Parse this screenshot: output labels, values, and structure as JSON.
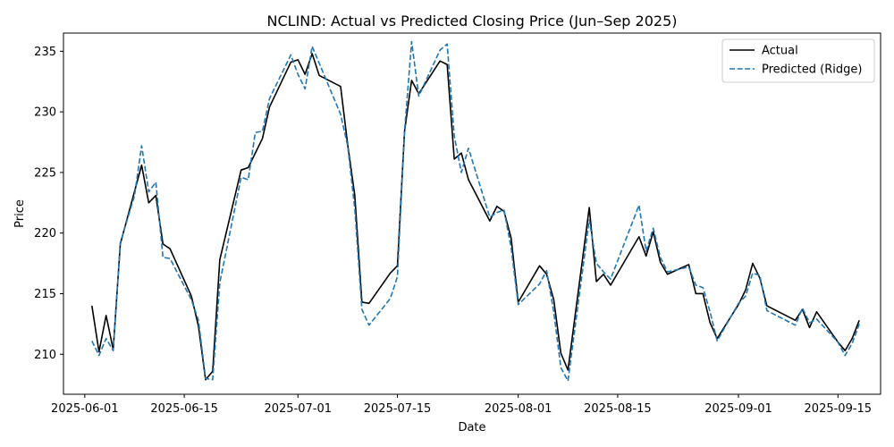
{
  "chart_data": {
    "type": "line",
    "title": "NCLIND: Actual vs Predicted Closing Price (Jun–Sep 2025)",
    "xlabel": "Date",
    "ylabel": "Price",
    "xlim": [
      "2025-05-29",
      "2025-09-21"
    ],
    "ylim": [
      206.7,
      236.5
    ],
    "x_ticks": [
      "2025-06-01",
      "2025-06-15",
      "2025-07-01",
      "2025-07-15",
      "2025-08-01",
      "2025-08-15",
      "2025-09-01",
      "2025-09-15"
    ],
    "y_ticks": [
      210,
      215,
      220,
      225,
      230,
      235
    ],
    "legend": {
      "position": "top-right"
    },
    "series": [
      {
        "name": "Actual",
        "color": "#000000",
        "dash": "solid",
        "points": [
          [
            "2025-06-02",
            214.0
          ],
          [
            "2025-06-03",
            210.2
          ],
          [
            "2025-06-04",
            213.2
          ],
          [
            "2025-06-05",
            210.4
          ],
          [
            "2025-06-06",
            219.1
          ],
          [
            "2025-06-09",
            225.6
          ],
          [
            "2025-06-10",
            222.5
          ],
          [
            "2025-06-11",
            223.1
          ],
          [
            "2025-06-12",
            219.1
          ],
          [
            "2025-06-13",
            218.7
          ],
          [
            "2025-06-16",
            214.8
          ],
          [
            "2025-06-17",
            212.3
          ],
          [
            "2025-06-18",
            207.9
          ],
          [
            "2025-06-19",
            208.6
          ],
          [
            "2025-06-20",
            217.8
          ],
          [
            "2025-06-23",
            225.2
          ],
          [
            "2025-06-24",
            225.4
          ],
          [
            "2025-06-26",
            227.8
          ],
          [
            "2025-06-27",
            230.4
          ],
          [
            "2025-06-30",
            234.1
          ],
          [
            "2025-07-01",
            234.3
          ],
          [
            "2025-07-02",
            233.1
          ],
          [
            "2025-07-03",
            234.8
          ],
          [
            "2025-07-04",
            233.0
          ],
          [
            "2025-07-07",
            232.1
          ],
          [
            "2025-07-08",
            227.3
          ],
          [
            "2025-07-09",
            223.1
          ],
          [
            "2025-07-10",
            214.3
          ],
          [
            "2025-07-11",
            214.2
          ],
          [
            "2025-07-14",
            216.7
          ],
          [
            "2025-07-15",
            217.3
          ],
          [
            "2025-07-16",
            228.4
          ],
          [
            "2025-07-17",
            232.6
          ],
          [
            "2025-07-18",
            231.5
          ],
          [
            "2025-07-21",
            234.2
          ],
          [
            "2025-07-22",
            233.9
          ],
          [
            "2025-07-23",
            226.1
          ],
          [
            "2025-07-24",
            226.6
          ],
          [
            "2025-07-25",
            224.4
          ],
          [
            "2025-07-28",
            221.0
          ],
          [
            "2025-07-29",
            222.2
          ],
          [
            "2025-07-30",
            221.8
          ],
          [
            "2025-07-31",
            219.6
          ],
          [
            "2025-08-01",
            214.3
          ],
          [
            "2025-08-04",
            217.3
          ],
          [
            "2025-08-05",
            216.6
          ],
          [
            "2025-08-06",
            214.5
          ],
          [
            "2025-08-07",
            210.1
          ],
          [
            "2025-08-08",
            208.7
          ],
          [
            "2025-08-11",
            222.1
          ],
          [
            "2025-08-12",
            216.0
          ],
          [
            "2025-08-13",
            216.6
          ],
          [
            "2025-08-14",
            215.7
          ],
          [
            "2025-08-18",
            219.7
          ],
          [
            "2025-08-19",
            218.1
          ],
          [
            "2025-08-20",
            220.1
          ],
          [
            "2025-08-21",
            217.6
          ],
          [
            "2025-08-22",
            216.6
          ],
          [
            "2025-08-25",
            217.4
          ],
          [
            "2025-08-26",
            215.0
          ],
          [
            "2025-08-27",
            215.0
          ],
          [
            "2025-08-28",
            212.6
          ],
          [
            "2025-08-29",
            211.3
          ],
          [
            "2025-09-01",
            214.1
          ],
          [
            "2025-09-02",
            215.3
          ],
          [
            "2025-09-03",
            217.5
          ],
          [
            "2025-09-04",
            216.3
          ],
          [
            "2025-09-05",
            214.0
          ],
          [
            "2025-09-09",
            212.8
          ],
          [
            "2025-09-10",
            213.7
          ],
          [
            "2025-09-11",
            212.2
          ],
          [
            "2025-09-12",
            213.5
          ],
          [
            "2025-09-15",
            211.0
          ],
          [
            "2025-09-16",
            210.3
          ],
          [
            "2025-09-17",
            211.3
          ],
          [
            "2025-09-18",
            212.8
          ]
        ]
      },
      {
        "name": "Predicted (Ridge)",
        "color": "#1f77b4",
        "dash": "dashed",
        "points": [
          [
            "2025-06-02",
            211.1
          ],
          [
            "2025-06-03",
            209.9
          ],
          [
            "2025-06-04",
            211.3
          ],
          [
            "2025-06-05",
            210.3
          ],
          [
            "2025-06-06",
            219.2
          ],
          [
            "2025-06-08",
            223.1
          ],
          [
            "2025-06-09",
            227.2
          ],
          [
            "2025-06-10",
            223.4
          ],
          [
            "2025-06-11",
            224.2
          ],
          [
            "2025-06-12",
            218.0
          ],
          [
            "2025-06-13",
            217.9
          ],
          [
            "2025-06-16",
            214.5
          ],
          [
            "2025-06-17",
            212.8
          ],
          [
            "2025-06-18",
            208.0
          ],
          [
            "2025-06-19",
            207.9
          ],
          [
            "2025-06-20",
            215.9
          ],
          [
            "2025-06-23",
            224.6
          ],
          [
            "2025-06-24",
            224.4
          ],
          [
            "2025-06-25",
            228.3
          ],
          [
            "2025-06-26",
            228.4
          ],
          [
            "2025-06-27",
            231.1
          ],
          [
            "2025-06-30",
            234.7
          ],
          [
            "2025-07-01",
            233.1
          ],
          [
            "2025-07-02",
            231.9
          ],
          [
            "2025-07-03",
            235.4
          ],
          [
            "2025-07-04",
            234.0
          ],
          [
            "2025-07-07",
            229.8
          ],
          [
            "2025-07-08",
            227.2
          ],
          [
            "2025-07-09",
            222.0
          ],
          [
            "2025-07-10",
            213.7
          ],
          [
            "2025-07-11",
            212.4
          ],
          [
            "2025-07-14",
            214.6
          ],
          [
            "2025-07-15",
            216.4
          ],
          [
            "2025-07-16",
            228.4
          ],
          [
            "2025-07-17",
            235.8
          ],
          [
            "2025-07-18",
            231.3
          ],
          [
            "2025-07-21",
            235.1
          ],
          [
            "2025-07-22",
            235.6
          ],
          [
            "2025-07-23",
            228.0
          ],
          [
            "2025-07-24",
            225.0
          ],
          [
            "2025-07-25",
            227.0
          ],
          [
            "2025-07-28",
            221.3
          ],
          [
            "2025-07-29",
            221.7
          ],
          [
            "2025-07-30",
            221.9
          ],
          [
            "2025-07-31",
            218.8
          ],
          [
            "2025-08-01",
            214.1
          ],
          [
            "2025-08-04",
            215.8
          ],
          [
            "2025-08-05",
            216.9
          ],
          [
            "2025-08-06",
            213.5
          ],
          [
            "2025-08-07",
            208.9
          ],
          [
            "2025-08-08",
            207.8
          ],
          [
            "2025-08-11",
            221.1
          ],
          [
            "2025-08-12",
            217.5
          ],
          [
            "2025-08-13",
            216.8
          ],
          [
            "2025-08-14",
            216.2
          ],
          [
            "2025-08-18",
            222.3
          ],
          [
            "2025-08-19",
            218.5
          ],
          [
            "2025-08-20",
            220.4
          ],
          [
            "2025-08-21",
            218.0
          ],
          [
            "2025-08-22",
            216.8
          ],
          [
            "2025-08-25",
            217.2
          ],
          [
            "2025-08-26",
            215.7
          ],
          [
            "2025-08-27",
            215.5
          ],
          [
            "2025-08-28",
            213.5
          ],
          [
            "2025-08-29",
            211.1
          ],
          [
            "2025-09-01",
            214.2
          ],
          [
            "2025-09-02",
            214.8
          ],
          [
            "2025-09-03",
            216.7
          ],
          [
            "2025-09-04",
            216.5
          ],
          [
            "2025-09-05",
            213.6
          ],
          [
            "2025-09-09",
            212.4
          ],
          [
            "2025-09-10",
            213.8
          ],
          [
            "2025-09-11",
            212.6
          ],
          [
            "2025-09-12",
            212.9
          ],
          [
            "2025-09-15",
            211.0
          ],
          [
            "2025-09-16",
            209.9
          ],
          [
            "2025-09-17",
            210.9
          ],
          [
            "2025-09-18",
            212.5
          ]
        ]
      }
    ]
  }
}
